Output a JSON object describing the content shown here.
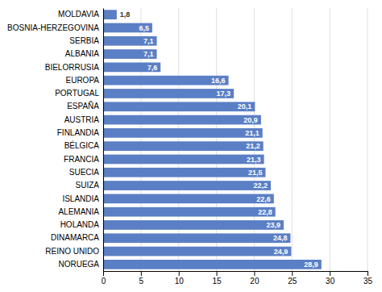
{
  "chart_data": {
    "type": "bar",
    "orientation": "horizontal",
    "categories": [
      "NORUEGA",
      "REINO UNIDO",
      "DINAMARCA",
      "HOLANDA",
      "ALEMANIA",
      "ISLANDIA",
      "SUIZA",
      "SUECIA",
      "FRANCIA",
      "BÉLGICA",
      "FINLANDIA",
      "AUSTRIA",
      "ESPAÑA",
      "PORTUGAL",
      "EUROPA",
      "BIELORRUSIA",
      "ALBANIA",
      "SERBIA",
      "BOSNIA-HERZEGOVINA",
      "MOLDAVIA"
    ],
    "values": [
      28.9,
      24.9,
      24.8,
      23.9,
      22.8,
      22.6,
      22.2,
      21.5,
      21.3,
      21.2,
      21.1,
      20.9,
      20.1,
      17.3,
      16.6,
      7.6,
      7.1,
      7.1,
      6.5,
      1.8
    ],
    "value_labels": [
      "28,9",
      "24,9",
      "24,8",
      "23,9",
      "22,8",
      "22,6",
      "22,2",
      "21,5",
      "21,3",
      "21,2",
      "21,1",
      "20,9",
      "20,1",
      "17,3",
      "16,6",
      "7,6",
      "7,1",
      "7,1",
      "6,5",
      "1,8"
    ],
    "data_labels": true,
    "color": "#5B7FC5",
    "xlim": [
      0,
      35
    ],
    "xticks": [
      0,
      5,
      10,
      15,
      20,
      25,
      30,
      35
    ],
    "grid": true
  }
}
